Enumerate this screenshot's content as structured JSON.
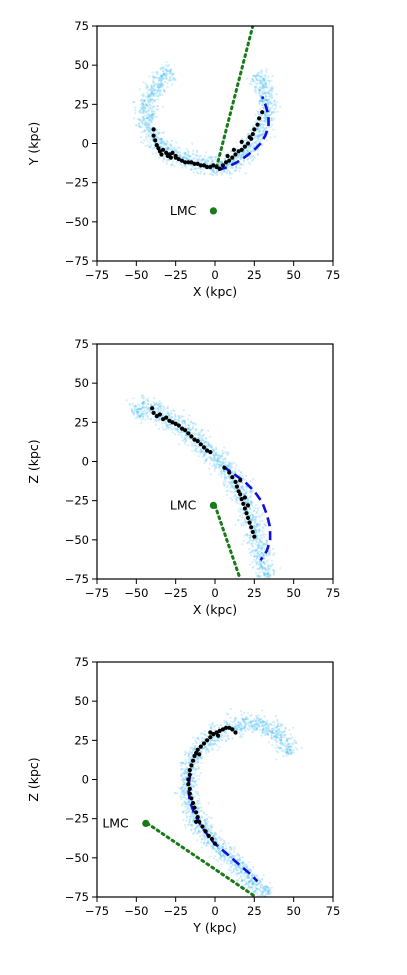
{
  "colors": {
    "stream": "#33b5f0",
    "members": "#000000",
    "orbit": "#1010dd",
    "lmc": "#1a7a1a"
  },
  "chart_data": [
    {
      "type": "scatter",
      "panel": "xy",
      "xlabel": "X (kpc)",
      "ylabel": "Y (kpc)",
      "xlim": [
        -75,
        75
      ],
      "ylim": [
        -75,
        75
      ],
      "ticks": [
        -75,
        -50,
        -25,
        0,
        25,
        50,
        75
      ],
      "tick_labels": [
        "−75",
        "−50",
        "−25",
        "0",
        "25",
        "50",
        "75"
      ],
      "stream_path": [
        [
          26,
          45
        ],
        [
          31,
          37
        ],
        [
          34,
          28
        ],
        [
          33,
          18
        ],
        [
          30,
          10
        ],
        [
          26,
          3
        ],
        [
          21,
          -4
        ],
        [
          16,
          -10
        ],
        [
          10,
          -14
        ],
        [
          3,
          -15
        ],
        [
          -5,
          -14
        ],
        [
          -13,
          -12
        ],
        [
          -22,
          -9
        ],
        [
          -31,
          -5
        ],
        [
          -37,
          0
        ],
        [
          -42,
          8
        ],
        [
          -44,
          18
        ],
        [
          -42,
          28
        ],
        [
          -38,
          37
        ],
        [
          -33,
          43
        ],
        [
          -27,
          46
        ]
      ],
      "stream_width": 4.5,
      "members": [
        [
          -39,
          9
        ],
        [
          -39,
          5
        ],
        [
          -38,
          2
        ],
        [
          -37,
          -1
        ],
        [
          -36,
          -3
        ],
        [
          -35,
          -5
        ],
        [
          -34,
          -7
        ],
        [
          -33,
          -4
        ],
        [
          -31,
          -6
        ],
        [
          -30,
          -8
        ],
        [
          -28,
          -9
        ],
        [
          -27,
          -6
        ],
        [
          -25,
          -9
        ],
        [
          -23,
          -10
        ],
        [
          -21,
          -11
        ],
        [
          -19,
          -12
        ],
        [
          -17,
          -12
        ],
        [
          -15,
          -12
        ],
        [
          -13,
          -13
        ],
        [
          -11,
          -13
        ],
        [
          -9,
          -14
        ],
        [
          -7,
          -14
        ],
        [
          -5,
          -15
        ],
        [
          -3,
          -15
        ],
        [
          -1,
          -14
        ],
        [
          1,
          -15
        ],
        [
          3,
          -16
        ],
        [
          5,
          -14
        ],
        [
          7,
          -12
        ],
        [
          9,
          -11
        ],
        [
          11,
          -9
        ],
        [
          13,
          -7
        ],
        [
          15,
          -5
        ],
        [
          17,
          -4
        ],
        [
          19,
          -2
        ],
        [
          21,
          0
        ],
        [
          23,
          3
        ],
        [
          24,
          6
        ],
        [
          25,
          9
        ],
        [
          27,
          12
        ],
        [
          28,
          16
        ],
        [
          30,
          20
        ],
        [
          -25,
          -8
        ],
        [
          -29,
          -7
        ],
        [
          8,
          -8
        ],
        [
          12,
          -4
        ],
        [
          17,
          1
        ],
        [
          22,
          4
        ]
      ],
      "orbit": [
        [
          2,
          -17
        ],
        [
          8,
          -15
        ],
        [
          14,
          -12
        ],
        [
          20,
          -8
        ],
        [
          25,
          -4
        ],
        [
          29,
          0
        ],
        [
          32,
          5
        ],
        [
          34,
          11
        ],
        [
          34,
          18
        ],
        [
          32,
          25
        ],
        [
          30,
          30
        ]
      ],
      "lmc_track": [
        [
          1,
          -15
        ],
        [
          24,
          75
        ]
      ],
      "lmc_point": [
        -1,
        -43
      ],
      "lmc_label": "LMC"
    },
    {
      "type": "scatter",
      "panel": "xz",
      "xlabel": "X (kpc)",
      "ylabel": "Z (kpc)",
      "xlim": [
        -75,
        75
      ],
      "ylim": [
        -75,
        75
      ],
      "ticks": [
        -75,
        -50,
        -25,
        0,
        25,
        50,
        75
      ],
      "tick_labels": [
        "−75",
        "−50",
        "−25",
        "0",
        "25",
        "50",
        "75"
      ],
      "stream_path": [
        [
          -53,
          32
        ],
        [
          -48,
          35
        ],
        [
          -42,
          34
        ],
        [
          -35,
          31
        ],
        [
          -28,
          27
        ],
        [
          -20,
          21
        ],
        [
          -12,
          14
        ],
        [
          -4,
          7
        ],
        [
          4,
          -1
        ],
        [
          11,
          -10
        ],
        [
          17,
          -20
        ],
        [
          21,
          -30
        ],
        [
          24,
          -40
        ],
        [
          27,
          -50
        ],
        [
          29,
          -60
        ],
        [
          31,
          -68
        ],
        [
          34,
          -75
        ]
      ],
      "stream_width": 5,
      "members": [
        [
          -40,
          34
        ],
        [
          -39,
          31
        ],
        [
          -37,
          29
        ],
        [
          -35,
          30
        ],
        [
          -33,
          27
        ],
        [
          -31,
          28
        ],
        [
          -29,
          26
        ],
        [
          -27,
          25
        ],
        [
          -25,
          24
        ],
        [
          -23,
          23
        ],
        [
          -21,
          21
        ],
        [
          -19,
          20
        ],
        [
          -17,
          18
        ],
        [
          -15,
          16
        ],
        [
          -13,
          14
        ],
        [
          -11,
          13
        ],
        [
          -9,
          11
        ],
        [
          -7,
          9
        ],
        [
          -5,
          7
        ],
        [
          -3,
          6
        ],
        [
          6,
          -4
        ],
        [
          9,
          -7
        ],
        [
          11,
          -10
        ],
        [
          13,
          -13
        ],
        [
          14,
          -16
        ],
        [
          15,
          -19
        ],
        [
          16,
          -21
        ],
        [
          17,
          -24
        ],
        [
          18,
          -27
        ],
        [
          19,
          -30
        ],
        [
          20,
          -33
        ],
        [
          21,
          -36
        ],
        [
          22,
          -39
        ],
        [
          23,
          -42
        ],
        [
          24,
          -45
        ],
        [
          25,
          -48
        ],
        [
          16,
          -12
        ],
        [
          19,
          -23
        ],
        [
          21,
          -28
        ]
      ],
      "orbit": [
        [
          5,
          -3
        ],
        [
          12,
          -8
        ],
        [
          19,
          -13
        ],
        [
          25,
          -19
        ],
        [
          30,
          -26
        ],
        [
          33,
          -34
        ],
        [
          35,
          -42
        ],
        [
          35,
          -50
        ],
        [
          33,
          -57
        ],
        [
          29,
          -63
        ]
      ],
      "lmc_track": [
        [
          0,
          -28
        ],
        [
          16,
          -75
        ]
      ],
      "lmc_point": [
        -1,
        -28
      ],
      "lmc_label": "LMC"
    },
    {
      "type": "scatter",
      "panel": "yz",
      "xlabel": "Y (kpc)",
      "ylabel": "Z (kpc)",
      "xlim": [
        -75,
        75
      ],
      "ylim": [
        -75,
        75
      ],
      "ticks": [
        -75,
        -50,
        -25,
        0,
        25,
        50,
        75
      ],
      "tick_labels": [
        "−75",
        "−50",
        "−25",
        "0",
        "25",
        "50",
        "75"
      ],
      "stream_path": [
        [
          48,
          16
        ],
        [
          45,
          23
        ],
        [
          40,
          30
        ],
        [
          33,
          34
        ],
        [
          24,
          36
        ],
        [
          15,
          35
        ],
        [
          6,
          32
        ],
        [
          -2,
          27
        ],
        [
          -9,
          20
        ],
        [
          -14,
          12
        ],
        [
          -17,
          4
        ],
        [
          -18,
          -4
        ],
        [
          -17,
          -12
        ],
        [
          -14,
          -20
        ],
        [
          -10,
          -28
        ],
        [
          -4,
          -36
        ],
        [
          3,
          -44
        ],
        [
          10,
          -51
        ],
        [
          17,
          -58
        ],
        [
          23,
          -64
        ],
        [
          29,
          -70
        ],
        [
          35,
          -74
        ]
      ],
      "stream_width": 4.5,
      "members": [
        [
          9,
          33
        ],
        [
          7,
          33
        ],
        [
          5,
          32
        ],
        [
          3,
          31
        ],
        [
          1,
          30
        ],
        [
          -1,
          29
        ],
        [
          -3,
          27
        ],
        [
          -5,
          25
        ],
        [
          -7,
          23
        ],
        [
          -9,
          21
        ],
        [
          -11,
          19
        ],
        [
          -12,
          17
        ],
        [
          -13,
          15
        ],
        [
          -14,
          12
        ],
        [
          -15,
          9
        ],
        [
          -16,
          6
        ],
        [
          -16,
          3
        ],
        [
          -17,
          0
        ],
        [
          -17,
          -3
        ],
        [
          -16,
          -6
        ],
        [
          -16,
          -9
        ],
        [
          -15,
          -12
        ],
        [
          -14,
          -15
        ],
        [
          -13,
          -18
        ],
        [
          -12,
          -21
        ],
        [
          -11,
          -24
        ],
        [
          -10,
          -27
        ],
        [
          -8,
          -30
        ],
        [
          -6,
          -33
        ],
        [
          -4,
          -36
        ],
        [
          -2,
          -38
        ],
        [
          0,
          -41
        ],
        [
          11,
          32
        ],
        [
          13,
          30
        ],
        [
          -3,
          30
        ],
        [
          2,
          28
        ],
        [
          -10,
          16
        ],
        [
          -12,
          -27
        ]
      ],
      "orbit": [
        [
          -16,
          2
        ],
        [
          -17,
          -6
        ],
        [
          -16,
          -14
        ],
        [
          -13,
          -22
        ],
        [
          -8,
          -31
        ],
        [
          -1,
          -40
        ],
        [
          7,
          -47
        ],
        [
          15,
          -54
        ],
        [
          22,
          -60
        ],
        [
          27,
          -65
        ]
      ],
      "lmc_track": [
        [
          -43,
          -28
        ],
        [
          26,
          -75
        ]
      ],
      "lmc_point": [
        -44,
        -28
      ],
      "lmc_label": "LMC"
    }
  ]
}
